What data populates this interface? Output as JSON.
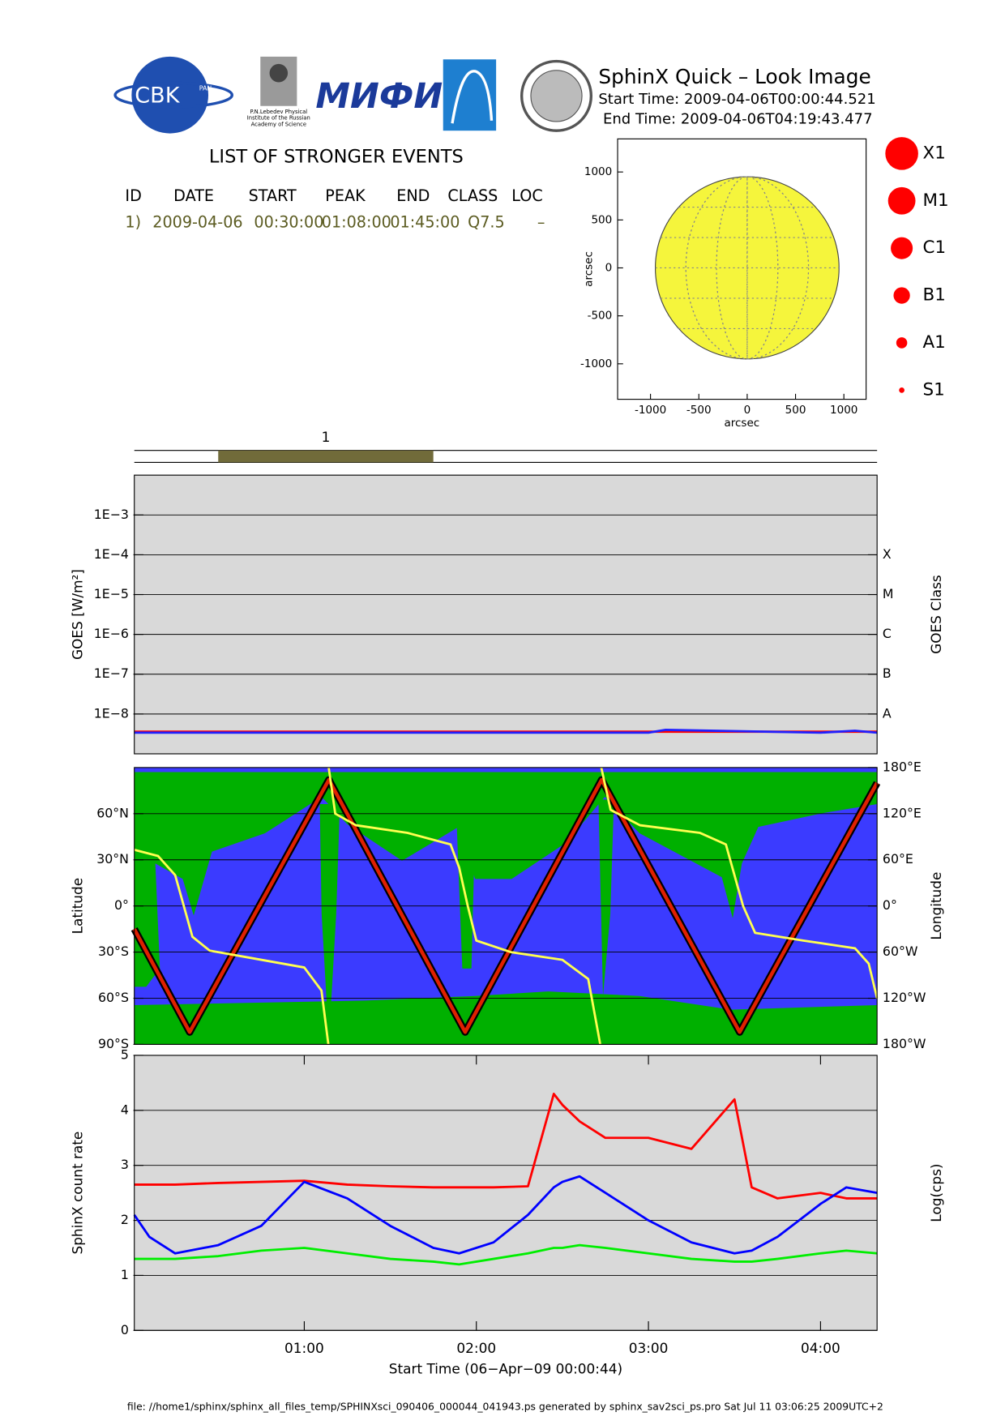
{
  "header": {
    "title": "SphinX Quick – Look Image",
    "start": "Start Time: 2009-04-06T00:00:44.521",
    "end": "End Time: 2009-04-06T04:19:43.477"
  },
  "logos": {
    "cbk": "CBK",
    "pan": "PAN",
    "lebedev": [
      "P.N.Lebedev Physical",
      "Institute of the Russian",
      "Academy of Science"
    ],
    "mifi": "МИФИ"
  },
  "events": {
    "title": "LIST OF STRONGER EVENTS",
    "columns": [
      "ID",
      "DATE",
      "START",
      "PEAK",
      "END",
      "CLASS",
      "LOC"
    ],
    "rows": [
      [
        "1)",
        "2009-04-06",
        "00:30:00",
        "01:08:00",
        "01:45:00",
        "Q7.5",
        "–"
      ]
    ]
  },
  "legend_classes": [
    "X1",
    "M1",
    "C1",
    "B1",
    "A1",
    "S1"
  ],
  "legend_color": "#ff0000",
  "footer": "file: //home1/sphinx/sphinx_all_files_temp/SPHINXsci_090406_000044_041943.ps generated by sphinx_sav2sci_ps.pro Sat Jul 11 03:06:25 2009UTC+2",
  "chart_data": [
    {
      "type": "map",
      "xlabel": "arcsec",
      "ylabel": "arcsec",
      "xlim": [
        -1340,
        1230
      ],
      "ylim": [
        -1370,
        1345
      ],
      "xticks": [
        -1000,
        -500,
        0,
        500,
        1000
      ],
      "yticks": [
        -1000,
        -500,
        0,
        500,
        1000
      ],
      "sun_radius": 950,
      "color": "#f5f53c"
    },
    {
      "type": "timeline",
      "xlim": [
        0.0124,
        4.3286
      ],
      "events": [
        {
          "label": "1",
          "start": 0.5,
          "end": 1.75
        }
      ],
      "color": "#716b3a"
    },
    {
      "type": "line",
      "log": true,
      "grid": true,
      "background": "#d9d9d9",
      "ylabel": "GOES [W/m²]",
      "y2label": "GOES Class",
      "xlim": [
        0.0124,
        4.3286
      ],
      "ylim": [
        1e-09,
        0.01
      ],
      "yticks": [
        {
          "value": 1e-08,
          "label": "1E−8"
        },
        {
          "value": 1e-07,
          "label": "1E−7"
        },
        {
          "value": 1e-06,
          "label": "1E−6"
        },
        {
          "value": 1e-05,
          "label": "1E−5"
        },
        {
          "value": 0.0001,
          "label": "1E−4"
        },
        {
          "value": 0.001,
          "label": "1E−3"
        }
      ],
      "y2lim": [
        1e-09,
        0.01
      ],
      "y2ticks": [
        {
          "value": 1e-08,
          "label": "A"
        },
        {
          "value": 1e-07,
          "label": "B"
        },
        {
          "value": 1e-06,
          "label": "C"
        },
        {
          "value": 1e-05,
          "label": "M"
        },
        {
          "value": 0.0001,
          "label": "X"
        }
      ],
      "x": [
        0.0124,
        1,
        2,
        3,
        3.1,
        4,
        4.2,
        4.3286
      ],
      "series": [
        {
          "color": "#ff0000",
          "values": [
            3.6e-09,
            3.6e-09,
            3.6e-09,
            3.6e-09,
            3.6e-09,
            3.6e-09,
            3.6e-09,
            3.6e-09
          ]
        },
        {
          "color": "#2020ff",
          "values": [
            3.4e-09,
            3.4e-09,
            3.4e-09,
            3.4e-09,
            4e-09,
            3.4e-09,
            3.8e-09,
            3.4e-09
          ]
        }
      ]
    },
    {
      "type": "line",
      "grid": true,
      "background": "#3b3bff",
      "ylabel": "Latitude",
      "y2label": "Longitude",
      "xlim": [
        0.0124,
        4.3286
      ],
      "ylim": [
        -90,
        90
      ],
      "yticks": [
        {
          "value": -90,
          "label": "90°S"
        },
        {
          "value": -60,
          "label": "60°S"
        },
        {
          "value": -30,
          "label": "30°S"
        },
        {
          "value": 0,
          "label": "0°"
        },
        {
          "value": 30,
          "label": "30°N"
        },
        {
          "value": 60,
          "label": "60°N"
        }
      ],
      "y2lim": [
        -180,
        180
      ],
      "y2ticks": [
        {
          "value": -180,
          "label": "180°W"
        },
        {
          "value": -120,
          "label": "120°W"
        },
        {
          "value": -60,
          "label": "60°W"
        },
        {
          "value": 0,
          "label": "0°"
        },
        {
          "value": 60,
          "label": "60°E"
        },
        {
          "value": 120,
          "label": "120°E"
        },
        {
          "value": 180,
          "label": "180°E"
        }
      ],
      "series": [
        {
          "color": "#e02000",
          "outline": "#000000",
          "x": [
            0.0124,
            0.334,
            1.143,
            1.935,
            2.728,
            3.53,
            4.3286
          ],
          "values": [
            -15,
            -82,
            82,
            -82,
            82,
            -82,
            80
          ]
        },
        {
          "color": "#ffff50",
          "axis": "y2",
          "x": [
            0.0124,
            0.15,
            0.25,
            0.3,
            0.35,
            0.45,
            0.7,
            1.0,
            1.1,
            1.14,
            1.141,
            1.142,
            1.18,
            1.3,
            1.6,
            1.85,
            1.9,
            1.95,
            2.0,
            2.2,
            2.5,
            2.65,
            2.72,
            2.724,
            2.726,
            2.78,
            2.95,
            3.3,
            3.45,
            3.5,
            3.55,
            3.62,
            3.9,
            4.2,
            4.28,
            4.3286
          ],
          "values": [
            73,
            65,
            40,
            0,
            -40,
            -58,
            -68,
            -80,
            -110,
            -180,
            null,
            180,
            120,
            105,
            95,
            80,
            50,
            0,
            -45,
            -60,
            -70,
            -95,
            -180,
            null,
            180,
            125,
            105,
            95,
            80,
            40,
            0,
            -35,
            -45,
            -55,
            -75,
            -120
          ]
        }
      ]
    },
    {
      "type": "line",
      "grid": true,
      "background": "#d9d9d9",
      "ylabel": "SphinX count rate",
      "y2label": "Log(cps)",
      "xlabel": "Start Time (06−Apr−09 00:00:44)",
      "xlim": [
        0.0124,
        4.3286
      ],
      "ylim": [
        0,
        5
      ],
      "yticks": [
        0,
        1,
        2,
        3,
        4,
        5
      ],
      "xticks": [
        {
          "value": 1,
          "label": "01:00"
        },
        {
          "value": 2,
          "label": "02:00"
        },
        {
          "value": 3,
          "label": "03:00"
        },
        {
          "value": 4,
          "label": "04:00"
        }
      ],
      "x": [
        0.0124,
        0.1,
        0.25,
        0.5,
        0.75,
        1.0,
        1.25,
        1.5,
        1.75,
        1.9,
        2.1,
        2.3,
        2.45,
        2.5,
        2.6,
        2.75,
        3.0,
        3.25,
        3.5,
        3.6,
        3.75,
        4.0,
        4.15,
        4.3286
      ],
      "series": [
        {
          "color": "#00ee00",
          "values": [
            1.3,
            1.3,
            1.3,
            1.35,
            1.45,
            1.5,
            1.4,
            1.3,
            1.25,
            1.2,
            1.3,
            1.4,
            1.5,
            1.5,
            1.55,
            1.5,
            1.4,
            1.3,
            1.25,
            1.25,
            1.3,
            1.4,
            1.45,
            1.4
          ]
        },
        {
          "color": "#ff0000",
          "values": [
            2.65,
            2.65,
            2.65,
            2.68,
            2.7,
            2.72,
            2.65,
            2.62,
            2.6,
            2.6,
            2.6,
            2.62,
            4.3,
            4.1,
            3.8,
            3.5,
            3.5,
            3.3,
            4.2,
            2.6,
            2.4,
            2.5,
            2.4,
            2.4
          ]
        },
        {
          "color": "#0000ff",
          "values": [
            2.1,
            1.7,
            1.4,
            1.55,
            1.9,
            2.7,
            2.4,
            1.9,
            1.5,
            1.4,
            1.6,
            2.1,
            2.6,
            2.7,
            2.8,
            2.5,
            2.0,
            1.6,
            1.4,
            1.45,
            1.7,
            2.3,
            2.6,
            2.5
          ]
        }
      ]
    }
  ]
}
